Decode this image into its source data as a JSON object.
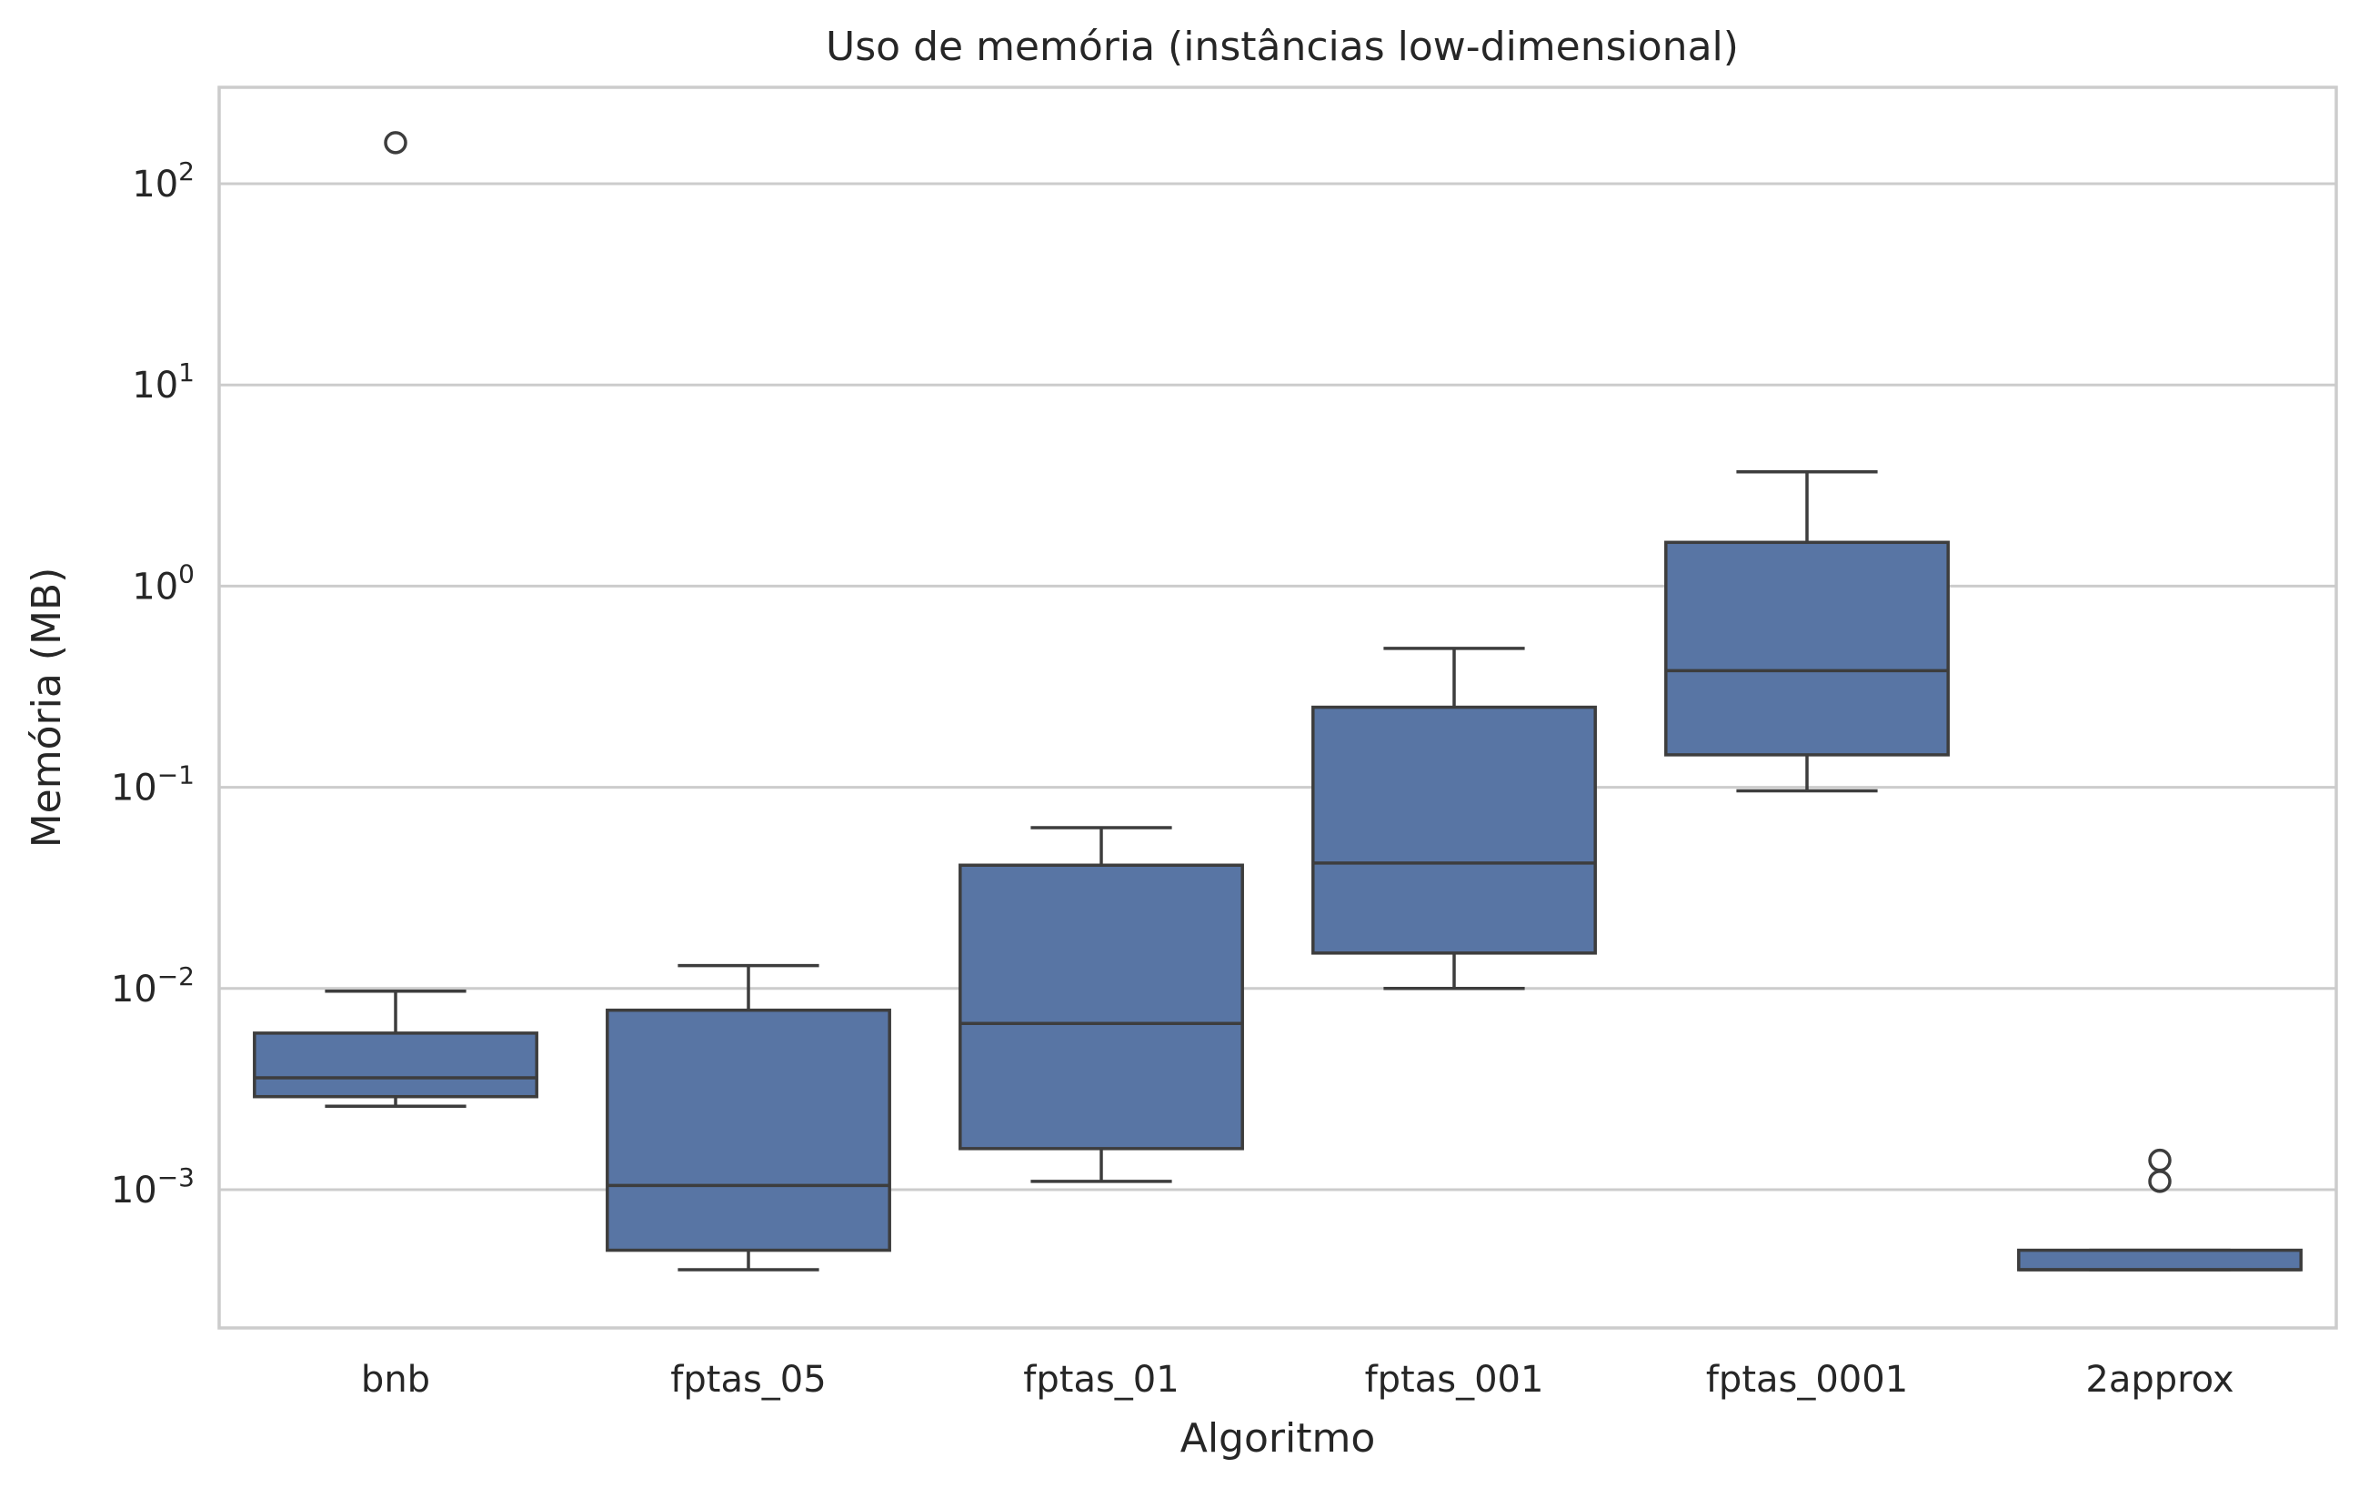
{
  "chart_data": {
    "type": "box",
    "title": "Uso de memória (instâncias low-dimensional)",
    "xlabel": "Algoritmo",
    "ylabel": "Memória (MB)",
    "yscale": "log",
    "ylim": [
      0.0002,
      300
    ],
    "yticks": [
      {
        "value": 0.001,
        "base": "10",
        "exp": "−3"
      },
      {
        "value": 0.01,
        "base": "10",
        "exp": "−2"
      },
      {
        "value": 0.1,
        "base": "10",
        "exp": "−1"
      },
      {
        "value": 1,
        "base": "10",
        "exp": "0"
      },
      {
        "value": 10,
        "base": "10",
        "exp": "1"
      },
      {
        "value": 100,
        "base": "10",
        "exp": "2"
      }
    ],
    "grid": true,
    "box_color": "#5875a4",
    "categories": [
      "bnb",
      "fptas_05",
      "fptas_01",
      "fptas_001",
      "fptas_0001",
      "2approx"
    ],
    "boxes": [
      {
        "category": "bnb",
        "whislo": 0.0026,
        "q1": 0.0029,
        "median": 0.0036,
        "q3": 0.006,
        "whishi": 0.0097,
        "fliers": [
          160
        ]
      },
      {
        "category": "fptas_05",
        "whislo": 0.0004,
        "q1": 0.0005,
        "median": 0.00105,
        "q3": 0.0078,
        "whishi": 0.013,
        "fliers": []
      },
      {
        "category": "fptas_01",
        "whislo": 0.0011,
        "q1": 0.0016,
        "median": 0.0067,
        "q3": 0.041,
        "whishi": 0.063,
        "fliers": []
      },
      {
        "category": "fptas_001",
        "whislo": 0.01,
        "q1": 0.015,
        "median": 0.042,
        "q3": 0.25,
        "whishi": 0.49,
        "fliers": []
      },
      {
        "category": "fptas_0001",
        "whislo": 0.096,
        "q1": 0.145,
        "median": 0.38,
        "q3": 1.65,
        "whishi": 3.7,
        "fliers": []
      },
      {
        "category": "2approx",
        "whislo": 0.0004,
        "q1": 0.0004,
        "median": 0.0004,
        "q3": 0.0005,
        "whishi": 0.0005,
        "fliers": [
          0.0011,
          0.0014
        ]
      }
    ]
  }
}
